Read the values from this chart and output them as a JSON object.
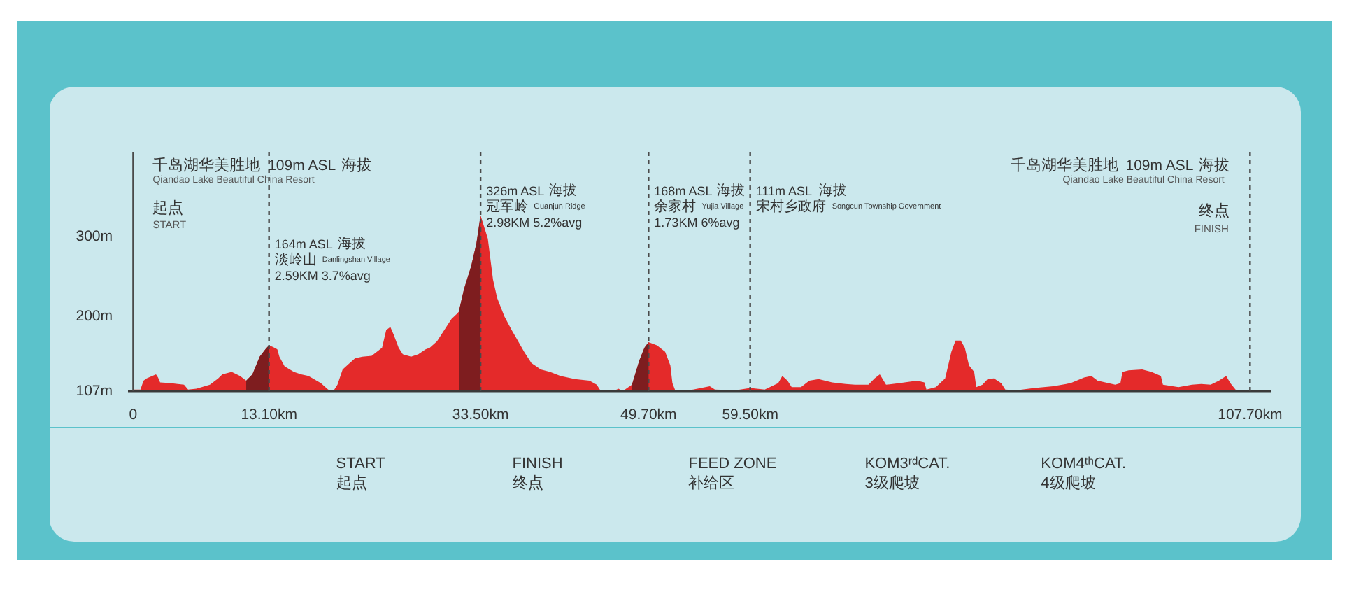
{
  "chart_data": {
    "type": "area",
    "x": [
      0,
      0.7,
      1.0,
      1.3,
      2.2,
      2.4,
      2.6,
      3.6,
      4.9,
      5.3,
      6.1,
      7.4,
      8.2,
      8.6,
      9.5,
      10.3,
      10.9,
      11.5,
      12.2,
      12.8,
      13.1,
      13.5,
      13.9,
      14.1,
      14.6,
      15.1,
      15.5,
      16.2,
      16.9,
      18.1,
      18.8,
      19.3,
      19.7,
      20.2,
      20.7,
      21.4,
      22.1,
      23.0,
      24.0,
      24.4,
      24.8,
      25.1,
      25.6,
      26.0,
      26.8,
      27.5,
      28.2,
      28.6,
      29.3,
      30.0,
      30.7,
      31.2,
      31.4,
      31.9,
      32.6,
      33.1,
      33.5,
      34.2,
      34.7,
      35.1,
      35.8,
      36.5,
      37.0,
      37.7,
      38.4,
      39.3,
      40.2,
      41.2,
      42.6,
      44.0,
      44.7,
      45.1,
      46.3,
      46.8,
      47.2,
      48.1,
      48.8,
      49.3,
      49.7,
      50.5,
      51.3,
      51.8,
      52.0,
      52.3,
      54.0,
      55.6,
      56.1,
      58.1,
      59.5,
      60.9,
      62.2,
      62.6,
      63.1,
      63.5,
      64.4,
      65.2,
      66.1,
      67.4,
      68.7,
      69.6,
      70.9,
      71.5,
      72.0,
      72.6,
      73.9,
      75.6,
      76.3,
      76.5,
      77.4,
      78.3,
      78.9,
      79.3,
      79.8,
      80.2,
      80.6,
      81.1,
      81.3,
      81.9,
      82.4,
      83.0,
      83.7,
      84.1,
      85.2,
      86.9,
      88.7,
      90.4,
      91.7,
      92.4,
      93.0,
      94.7,
      95.2,
      95.4,
      96.0,
      97.3,
      98.2,
      99.1,
      99.3,
      100.8,
      102.1,
      103.0,
      103.9,
      104.7,
      105.4,
      105.8,
      106.3,
      106.7,
      107.7
    ],
    "series": [
      {
        "color": "#e42a2a",
        "values": [
          109,
          109,
          120,
          123,
          128,
          124,
          118,
          117,
          115,
          109,
          110,
          115,
          123,
          128,
          131,
          126,
          120,
          128,
          150,
          160,
          164,
          162,
          159,
          150,
          138,
          134,
          131,
          128,
          126,
          117,
          109,
          107,
          115,
          134,
          140,
          148,
          150,
          151,
          161,
          183,
          187,
          178,
          161,
          153,
          150,
          153,
          159,
          161,
          169,
          183,
          197,
          203,
          206,
          234,
          263,
          291,
          326,
          297,
          246,
          223,
          200,
          183,
          172,
          156,
          142,
          134,
          131,
          126,
          122,
          120,
          115,
          107,
          107,
          110,
          107,
          115,
          145,
          161,
          168,
          164,
          156,
          139,
          117,
          107,
          109,
          113,
          109,
          108,
          111,
          109,
          117,
          126,
          120,
          112,
          112,
          120,
          122,
          118,
          116,
          115,
          115,
          123,
          128,
          115,
          117,
          120,
          118,
          109,
          112,
          123,
          156,
          170,
          170,
          161,
          139,
          131,
          112,
          115,
          122,
          123,
          117,
          109,
          108,
          111,
          113,
          117,
          124,
          126,
          120,
          115,
          117,
          131,
          133,
          134,
          131,
          126,
          115,
          112,
          115,
          116,
          115,
          120,
          126,
          117,
          109,
          107,
          109
        ]
      },
      {
        "type": "area",
        "color": "#7e1d1f",
        "x": [
          10.9,
          11.5,
          12.2,
          12.8,
          13.1
        ],
        "values": [
          120,
          128,
          150,
          160,
          164
        ]
      },
      {
        "type": "area",
        "color": "#7e1d1f",
        "x": [
          31.4,
          31.9,
          32.6,
          33.1,
          33.5
        ],
        "values": [
          206,
          234,
          263,
          291,
          326
        ]
      },
      {
        "type": "area",
        "color": "#7e1d1f",
        "x": [
          48.1,
          48.8,
          49.3,
          49.7
        ],
        "values": [
          115,
          145,
          161,
          168
        ]
      }
    ],
    "xlim": [
      -0.5,
      109.7
    ],
    "xticks": [
      0,
      {
        "value": 13.1,
        "label": "13.10km"
      },
      {
        "value": 33.5,
        "label": "33.50km"
      },
      {
        "value": 49.7,
        "label": "49.70km"
      },
      {
        "value": 59.5,
        "label": "59.50km"
      },
      {
        "value": 107.7,
        "label": "107.70km"
      }
    ],
    "ylim": [
      107,
      405
    ],
    "yticks": [
      {
        "value": 107,
        "label": "107m"
      },
      {
        "value": 200,
        "label": "200m"
      },
      {
        "value": 300,
        "label": "300m"
      }
    ],
    "ref_lines": [
      {
        "axis": "x",
        "value": 0,
        "line_style": "solid",
        "color": "#4a4a4a"
      },
      {
        "axis": "x",
        "value": 13.1,
        "line_style": "dashed",
        "color": "#4a4a4a"
      },
      {
        "axis": "x",
        "value": 33.5,
        "line_style": "dashed",
        "color": "#4a4a4a"
      },
      {
        "axis": "x",
        "value": 49.7,
        "line_style": "dashed",
        "color": "#4a4a4a"
      },
      {
        "axis": "x",
        "value": 59.5,
        "line_style": "dashed",
        "color": "#4a4a4a"
      },
      {
        "axis": "x",
        "value": 107.7,
        "line_style": "dashed",
        "color": "#4a4a4a"
      }
    ],
    "annotations": [
      {
        "text": "千岛湖华美胜地 109m ASL 海拔",
        "x": 0,
        "y": 388
      },
      {
        "text": "Qiandao Lake Beautiful China Resort",
        "x": 0,
        "y": 369
      },
      {
        "text": "起点",
        "x": 0,
        "y": 334
      },
      {
        "text": "START",
        "x": 0,
        "y": 314
      },
      {
        "text": "164m ASL 海拔",
        "x": 13.1,
        "y": 290
      },
      {
        "text": "淡岭山 Danlingshan Village",
        "x": 13.1,
        "y": 270
      },
      {
        "text": "2.59KM 3.7%avg",
        "x": 13.1,
        "y": 251
      },
      {
        "text": "326m ASL 海拔",
        "x": 33.5,
        "y": 356
      },
      {
        "text": "冠军岭 Guanjun Ridge",
        "x": 33.5,
        "y": 336
      },
      {
        "text": "2.98KM 5.2%avg",
        "x": 33.5,
        "y": 317
      },
      {
        "text": "168m ASL 海拔",
        "x": 49.7,
        "y": 356
      },
      {
        "text": "余家村 Yujia Village",
        "x": 49.7,
        "y": 336
      },
      {
        "text": "1.73KM 6%avg",
        "x": 49.7,
        "y": 317
      },
      {
        "text": "111m ASL 海拔",
        "x": 59.5,
        "y": 356
      },
      {
        "text": "宋村乡政府 Songcun Township Government",
        "x": 59.5,
        "y": 336
      },
      {
        "text": "千岛湖华美胜地 109m ASL 海拔",
        "x": 107.7,
        "y": 388
      },
      {
        "text": "Qiandao Lake Beautiful China Resort",
        "x": 107.7,
        "y": 369
      },
      {
        "text": "终点",
        "x": 107.7,
        "y": 331
      },
      {
        "text": "FINISH",
        "x": 107.7,
        "y": 309
      },
      "START",
      "起点",
      "FINISH",
      "终点",
      "FEED ZONE",
      "补给区",
      "KOM3ʳᵈCAT.",
      "3级爬坡",
      "KOM4ᵗʰCAT.",
      "4级爬坡"
    ]
  }
}
